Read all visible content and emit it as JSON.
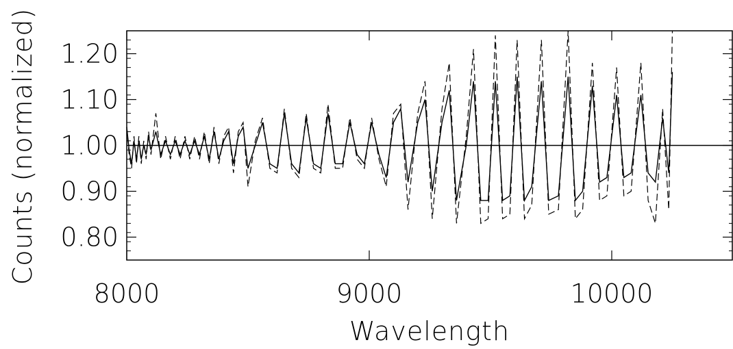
{
  "chart_data": {
    "type": "line",
    "xlabel": "Wavelength",
    "ylabel": "Counts (normalized)",
    "xlim": [
      8000,
      10500
    ],
    "ylim": [
      0.75,
      1.25
    ],
    "x_ticks": [
      8000,
      9000,
      10000
    ],
    "x_tick_labels": [
      "8000",
      "9000",
      "10000"
    ],
    "y_ticks": [
      0.8,
      0.9,
      1.0,
      1.1,
      1.2
    ],
    "y_tick_labels": [
      "0.80",
      "0.90",
      "1.00",
      "1.10",
      "1.20"
    ],
    "reference_line": 1.0,
    "grid": false,
    "colors": {
      "line": "#000000",
      "background": "#ffffff"
    },
    "series": [
      {
        "style": "solid",
        "x_start": 8000,
        "x_end": 10250,
        "points": [
          [
            8000,
            1.04
          ],
          [
            8010,
            0.99
          ],
          [
            8020,
            0.96
          ],
          [
            8030,
            1.01
          ],
          [
            8040,
            0.97
          ],
          [
            8050,
            1.01
          ],
          [
            8060,
            0.97
          ],
          [
            8070,
            1.0
          ],
          [
            8080,
            0.98
          ],
          [
            8090,
            1.02
          ],
          [
            8100,
            0.99
          ],
          [
            8120,
            1.03
          ],
          [
            8140,
            0.98
          ],
          [
            8160,
            1.01
          ],
          [
            8180,
            0.98
          ],
          [
            8200,
            1.01
          ],
          [
            8220,
            0.98
          ],
          [
            8240,
            1.01
          ],
          [
            8260,
            0.98
          ],
          [
            8280,
            1.01
          ],
          [
            8300,
            0.98
          ],
          [
            8320,
            1.02
          ],
          [
            8340,
            0.97
          ],
          [
            8360,
            1.03
          ],
          [
            8380,
            0.97
          ],
          [
            8400,
            1.01
          ],
          [
            8420,
            1.03
          ],
          [
            8440,
            0.96
          ],
          [
            8460,
            1.02
          ],
          [
            8480,
            1.04
          ],
          [
            8500,
            0.95
          ],
          [
            8530,
            1.0
          ],
          [
            8560,
            1.05
          ],
          [
            8590,
            0.96
          ],
          [
            8620,
            0.95
          ],
          [
            8650,
            1.07
          ],
          [
            8680,
            0.96
          ],
          [
            8710,
            0.94
          ],
          [
            8740,
            1.06
          ],
          [
            8770,
            0.96
          ],
          [
            8800,
            0.95
          ],
          [
            8830,
            1.07
          ],
          [
            8860,
            0.96
          ],
          [
            8890,
            0.96
          ],
          [
            8920,
            1.05
          ],
          [
            8950,
            0.98
          ],
          [
            8980,
            0.96
          ],
          [
            9010,
            1.05
          ],
          [
            9040,
            0.98
          ],
          [
            9070,
            0.93
          ],
          [
            9100,
            1.05
          ],
          [
            9130,
            1.08
          ],
          [
            9160,
            0.92
          ],
          [
            9200,
            1.05
          ],
          [
            9230,
            1.1
          ],
          [
            9260,
            0.9
          ],
          [
            9300,
            1.05
          ],
          [
            9330,
            1.12
          ],
          [
            9360,
            0.88
          ],
          [
            9400,
            1.0
          ],
          [
            9430,
            1.14
          ],
          [
            9460,
            0.88
          ],
          [
            9490,
            0.88
          ],
          [
            9520,
            1.14
          ],
          [
            9550,
            0.88
          ],
          [
            9580,
            0.89
          ],
          [
            9610,
            1.15
          ],
          [
            9640,
            0.88
          ],
          [
            9670,
            0.91
          ],
          [
            9710,
            1.14
          ],
          [
            9740,
            0.88
          ],
          [
            9780,
            0.89
          ],
          [
            9820,
            1.15
          ],
          [
            9850,
            0.88
          ],
          [
            9880,
            0.9
          ],
          [
            9920,
            1.13
          ],
          [
            9950,
            0.92
          ],
          [
            9980,
            0.93
          ],
          [
            10020,
            1.11
          ],
          [
            10050,
            0.93
          ],
          [
            10080,
            0.94
          ],
          [
            10120,
            1.11
          ],
          [
            10150,
            0.94
          ],
          [
            10180,
            0.92
          ],
          [
            10210,
            1.06
          ],
          [
            10235,
            0.94
          ],
          [
            10250,
            1.16
          ]
        ]
      },
      {
        "style": "dashed",
        "x_start": 8000,
        "x_end": 10250,
        "points": [
          [
            8000,
            1.04
          ],
          [
            8010,
            0.98
          ],
          [
            8020,
            0.95
          ],
          [
            8030,
            1.02
          ],
          [
            8040,
            0.96
          ],
          [
            8050,
            1.02
          ],
          [
            8060,
            0.96
          ],
          [
            8070,
            1.01
          ],
          [
            8080,
            0.97
          ],
          [
            8090,
            1.03
          ],
          [
            8100,
            0.98
          ],
          [
            8120,
            1.07
          ],
          [
            8140,
            0.97
          ],
          [
            8160,
            1.02
          ],
          [
            8180,
            0.97
          ],
          [
            8200,
            1.02
          ],
          [
            8220,
            0.97
          ],
          [
            8240,
            1.02
          ],
          [
            8260,
            0.97
          ],
          [
            8280,
            1.02
          ],
          [
            8300,
            0.97
          ],
          [
            8320,
            1.03
          ],
          [
            8340,
            0.96
          ],
          [
            8360,
            1.04
          ],
          [
            8380,
            0.96
          ],
          [
            8400,
            1.02
          ],
          [
            8420,
            1.04
          ],
          [
            8440,
            0.94
          ],
          [
            8460,
            1.03
          ],
          [
            8480,
            1.05
          ],
          [
            8500,
            0.91
          ],
          [
            8530,
            1.01
          ],
          [
            8560,
            1.06
          ],
          [
            8590,
            0.95
          ],
          [
            8620,
            0.94
          ],
          [
            8650,
            1.08
          ],
          [
            8680,
            0.95
          ],
          [
            8710,
            0.93
          ],
          [
            8740,
            1.07
          ],
          [
            8770,
            0.95
          ],
          [
            8800,
            0.94
          ],
          [
            8830,
            1.09
          ],
          [
            8860,
            0.95
          ],
          [
            8890,
            0.95
          ],
          [
            8920,
            1.06
          ],
          [
            8950,
            0.97
          ],
          [
            8980,
            0.95
          ],
          [
            9010,
            1.06
          ],
          [
            9040,
            0.97
          ],
          [
            9070,
            0.91
          ],
          [
            9100,
            1.07
          ],
          [
            9130,
            1.09
          ],
          [
            9160,
            0.86
          ],
          [
            9200,
            1.07
          ],
          [
            9230,
            1.14
          ],
          [
            9260,
            0.84
          ],
          [
            9300,
            1.08
          ],
          [
            9330,
            1.18
          ],
          [
            9360,
            0.83
          ],
          [
            9400,
            1.02
          ],
          [
            9430,
            1.21
          ],
          [
            9460,
            0.83
          ],
          [
            9490,
            0.84
          ],
          [
            9520,
            1.24
          ],
          [
            9550,
            0.84
          ],
          [
            9580,
            0.85
          ],
          [
            9610,
            1.23
          ],
          [
            9640,
            0.84
          ],
          [
            9670,
            0.87
          ],
          [
            9710,
            1.23
          ],
          [
            9740,
            0.85
          ],
          [
            9780,
            0.86
          ],
          [
            9820,
            1.25
          ],
          [
            9850,
            0.84
          ],
          [
            9880,
            0.86
          ],
          [
            9920,
            1.18
          ],
          [
            9950,
            0.88
          ],
          [
            9980,
            0.89
          ],
          [
            10020,
            1.17
          ],
          [
            10050,
            0.89
          ],
          [
            10080,
            0.9
          ],
          [
            10120,
            1.18
          ],
          [
            10150,
            0.88
          ],
          [
            10180,
            0.83
          ],
          [
            10210,
            1.08
          ],
          [
            10235,
            0.86
          ],
          [
            10250,
            1.25
          ]
        ]
      }
    ]
  }
}
